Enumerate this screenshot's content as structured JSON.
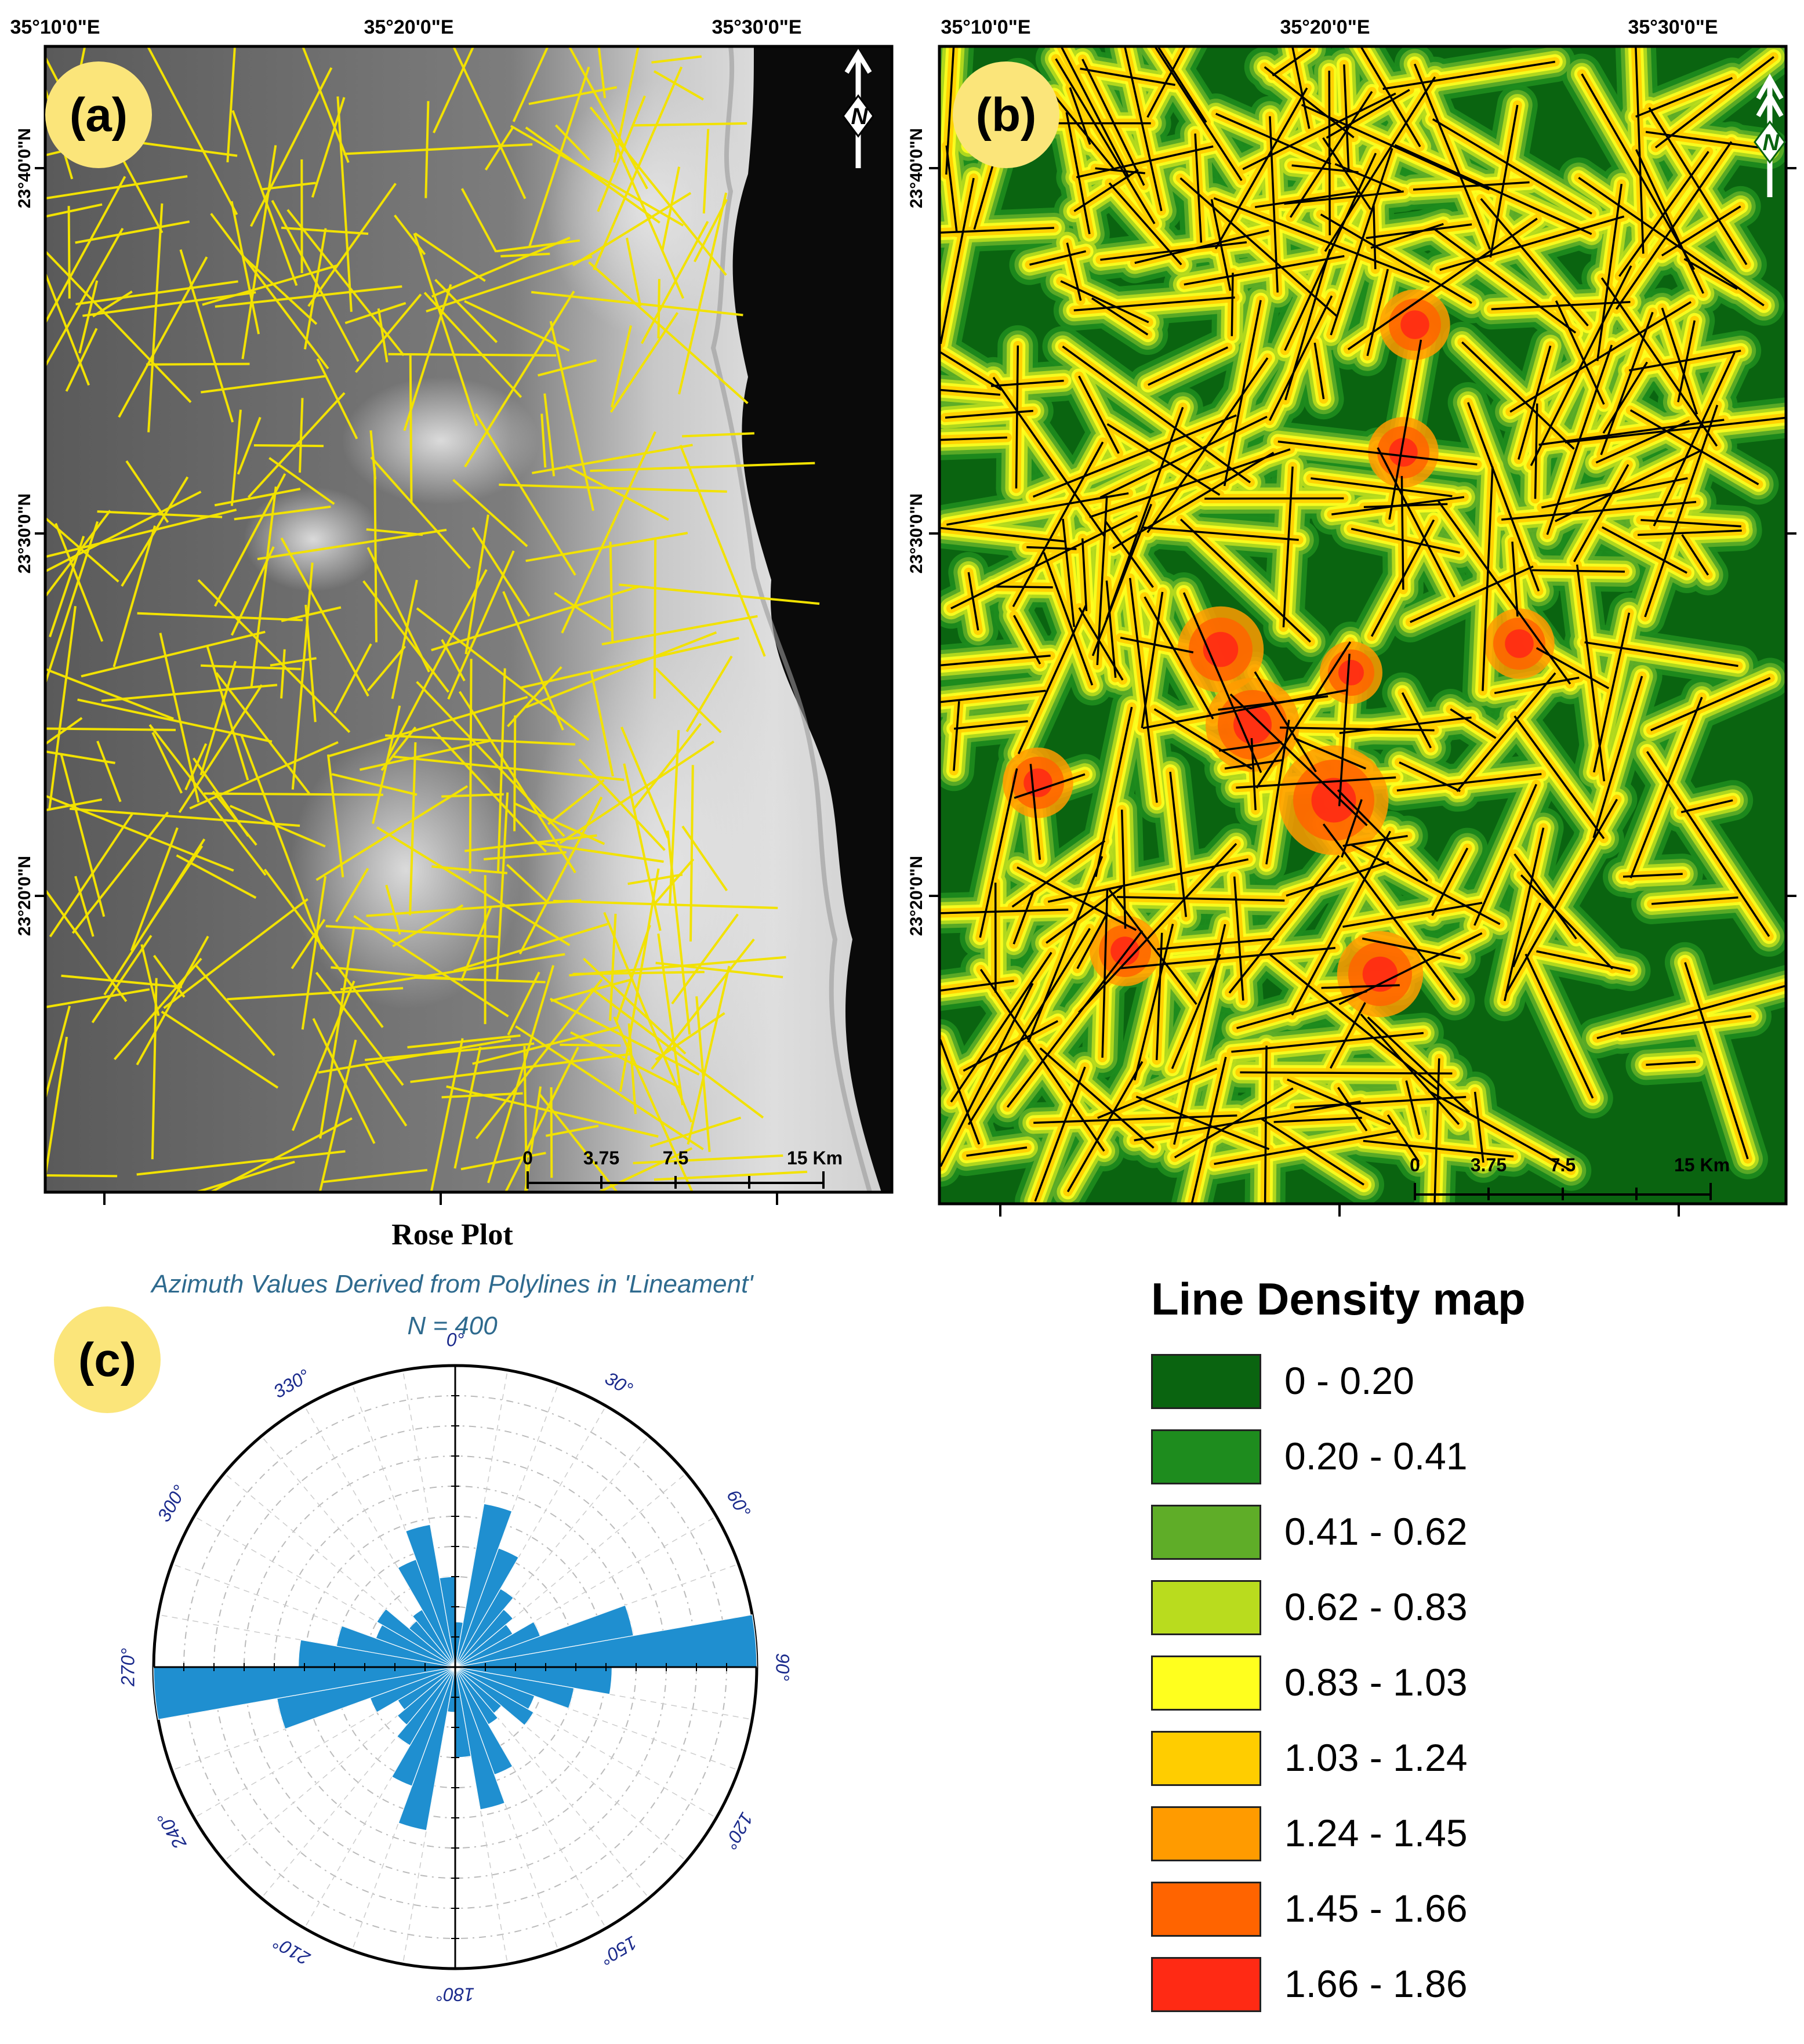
{
  "panels": {
    "a": {
      "label": "(a)",
      "north_label": "N",
      "top_coords": [
        "35°10'0\"E",
        "35°20'0\"E",
        "35°30'0\"E"
      ],
      "left_coords": [
        "23°40'0\"N",
        "23°30'0\"N",
        "23°20'0\"N"
      ],
      "scale_labels": [
        "0",
        "3.75",
        "7.5",
        "15 Km"
      ],
      "lineament_color": "#f2e200"
    },
    "b": {
      "label": "(b)",
      "north_label": "N",
      "top_coords": [
        "35°10'0\"E",
        "35°20'0\"E",
        "35°30'0\"E"
      ],
      "left_coords": [
        "23°40'0\"N",
        "23°30'0\"N",
        "23°20'0\"N"
      ],
      "scale_labels": [
        "0",
        "3.75",
        "7.5",
        "15 Km"
      ],
      "lineament_color": "#000000"
    },
    "c": {
      "label": "(c)"
    }
  },
  "rose": {
    "title": "Rose Plot",
    "subtitle": "Azimuth Values Derived from Polylines in 'Lineament'",
    "n_label": "N = 400",
    "angle_labels": [
      "0°",
      "30°",
      "60°",
      "90°",
      "120°",
      "150°",
      "180°",
      "210°",
      "240°",
      "270°",
      "300°",
      "330°"
    ],
    "petal_color": "#1f8fd0"
  },
  "legend": {
    "title": "Line Density map",
    "items": [
      {
        "label": "0 - 0.20",
        "color": "#0a6410"
      },
      {
        "label": "0.20 - 0.41",
        "color": "#1e8c1e"
      },
      {
        "label": "0.41 - 0.62",
        "color": "#5fad28"
      },
      {
        "label": "0.62 - 0.83",
        "color": "#b9dc1e"
      },
      {
        "label": "0.83 - 1.03",
        "color": "#ffff1e"
      },
      {
        "label": "1.03 - 1.24",
        "color": "#ffcd00"
      },
      {
        "label": "1.24 - 1.45",
        "color": "#ff9b00"
      },
      {
        "label": "1.45 - 1.66",
        "color": "#ff6400"
      },
      {
        "label": "1.66 - 1.86",
        "color": "#ff2a14"
      }
    ]
  }
}
